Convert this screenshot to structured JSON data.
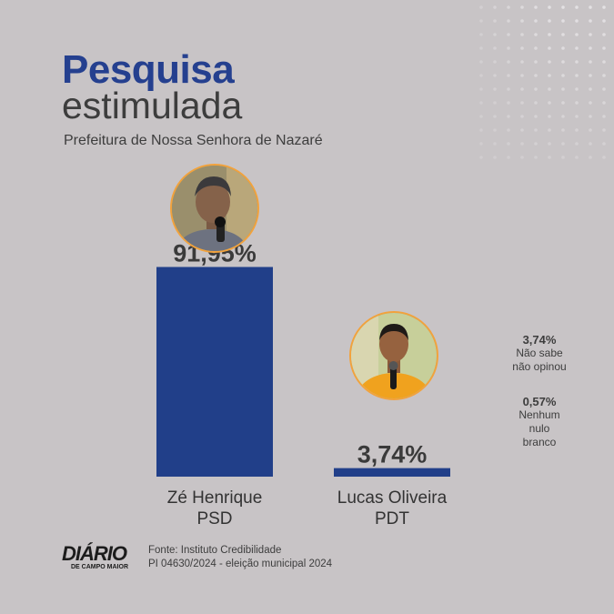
{
  "header": {
    "title_line1": "Pesquisa",
    "title_line2": "estimulada",
    "subtitle": "Prefeitura de Nossa Senhora de Nazaré"
  },
  "colors": {
    "bar": "#213f89",
    "title_blue": "#25408f",
    "avatar_border": "#f2a23c",
    "background": "#c8c4c6"
  },
  "chart_data": {
    "type": "bar",
    "categories": [
      "Zé Henrique",
      "Lucas Oliveira"
    ],
    "parties": [
      "PSD",
      "PDT"
    ],
    "values": [
      91.95,
      3.74
    ],
    "value_labels": [
      "91,95%",
      "3,74%"
    ],
    "ylim": [
      0,
      100
    ],
    "title": "Pesquisa estimulada",
    "subtitle": "Prefeitura de Nossa Senhora de Nazaré"
  },
  "others": [
    {
      "pct": "3,74%",
      "label_lines": [
        "Não sabe",
        "não opinou"
      ]
    },
    {
      "pct": "0,57%",
      "label_lines": [
        "Nenhum",
        "nulo",
        "branco"
      ]
    }
  ],
  "footer": {
    "logo_main": "DIÁRIO",
    "logo_sub": "DE CAMPO MAIOR",
    "source_line1": "Fonte: Instituto Credibilidade",
    "source_line2": "PI 04630/2024 - eleição municipal 2024"
  }
}
